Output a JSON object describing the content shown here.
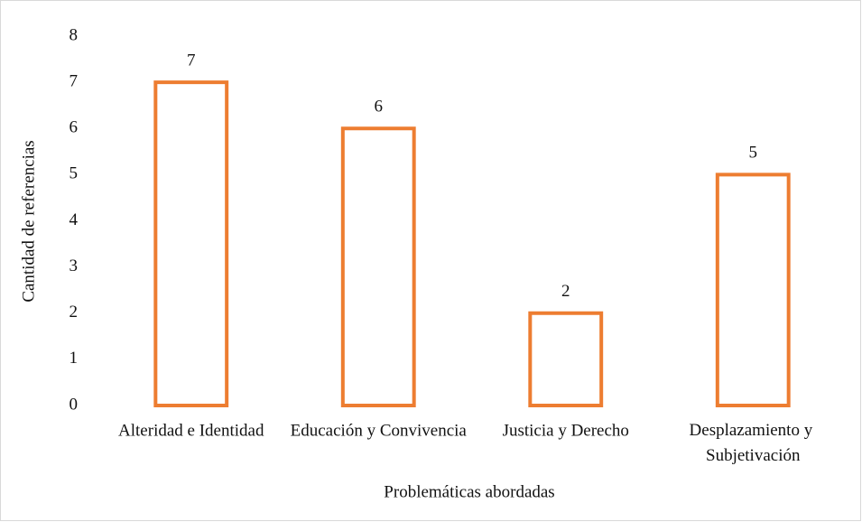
{
  "chart_data": {
    "type": "bar",
    "categories": [
      "Alteridad e Identidad",
      "Educación y Convivencia",
      "Justicia y Derecho",
      "Desplazamiento y Subjetivación"
    ],
    "values": [
      7,
      6,
      2,
      5
    ],
    "color": "#ED7D31",
    "xlabel": "Problemáticas abordadas",
    "ylabel": "Cantidad de referencias",
    "ylim": [
      0,
      8
    ],
    "yticks": [
      0,
      1,
      2,
      3,
      4,
      5,
      6,
      7,
      8
    ],
    "grid": false
  }
}
